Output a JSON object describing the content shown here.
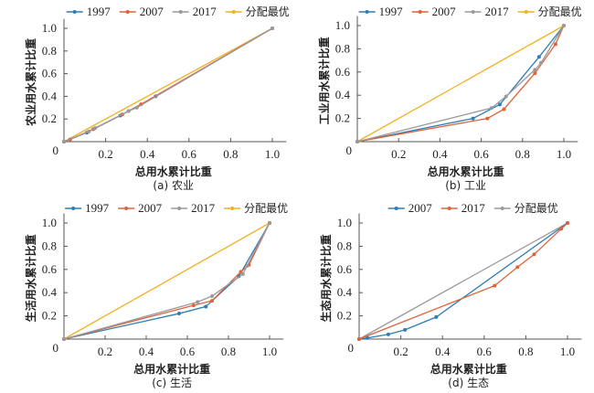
{
  "colors": {
    "blue": "#2f7db5",
    "red": "#e0623b",
    "gray": "#9a9a9a",
    "gold": "#f2b01e",
    "axis": "#555555"
  },
  "chart_data": [
    {
      "id": "a",
      "type": "line",
      "caption": "(a) 农业",
      "xlabel": "总用水累计比重",
      "ylabel": "农业用水累计比重",
      "xlim": [
        0,
        1.05
      ],
      "ylim": [
        0,
        1.05
      ],
      "xticks": [
        "0.2",
        "0.4",
        "0.6",
        "0.8",
        "1.0"
      ],
      "yticks": [
        "0.2",
        "0.4",
        "0.6",
        "0.8",
        "1.0"
      ],
      "origin_label": "0",
      "legend_position": "top",
      "series": [
        {
          "name": "1997",
          "color": "#2f7db5",
          "x": [
            0,
            0.11,
            0.27,
            0.31,
            0.44,
            1.0
          ],
          "y": [
            0,
            0.08,
            0.23,
            0.27,
            0.4,
            1.0
          ]
        },
        {
          "name": "2007",
          "color": "#e0623b",
          "x": [
            0,
            0.03,
            0.14,
            0.28,
            0.37,
            1.0
          ],
          "y": [
            0,
            0.02,
            0.11,
            0.24,
            0.33,
            1.0
          ]
        },
        {
          "name": "2017",
          "color": "#9a9a9a",
          "x": [
            0,
            0.12,
            0.15,
            0.31,
            0.35,
            1.0
          ],
          "y": [
            0,
            0.09,
            0.12,
            0.27,
            0.3,
            1.0
          ]
        },
        {
          "name": "分配最优",
          "color": "#f2b01e",
          "x": [
            0,
            1.0
          ],
          "y": [
            0,
            1.0
          ]
        }
      ]
    },
    {
      "id": "b",
      "type": "line",
      "caption": "(b) 工业",
      "xlabel": "总用水累计比重",
      "ylabel": "工业用水累计比重",
      "xlim": [
        0,
        1.05
      ],
      "ylim": [
        0,
        1.05
      ],
      "xticks": [
        "0.2",
        "0.4",
        "0.6",
        "0.8",
        "1.0"
      ],
      "yticks": [
        "0.2",
        "0.4",
        "0.6",
        "0.8",
        "1.0"
      ],
      "origin_label": "0",
      "legend_position": "top",
      "series": [
        {
          "name": "1997",
          "color": "#2f7db5",
          "x": [
            0,
            0.56,
            0.69,
            0.88,
            1.0
          ],
          "y": [
            0,
            0.2,
            0.32,
            0.73,
            1.0
          ]
        },
        {
          "name": "2007",
          "color": "#e0623b",
          "x": [
            0,
            0.63,
            0.71,
            0.86,
            0.96,
            1.0
          ],
          "y": [
            0,
            0.2,
            0.28,
            0.59,
            0.84,
            1.0
          ]
        },
        {
          "name": "2017",
          "color": "#9a9a9a",
          "x": [
            0,
            0.65,
            0.72,
            0.86,
            0.89,
            1.0
          ],
          "y": [
            0,
            0.29,
            0.39,
            0.62,
            0.68,
            1.0
          ]
        },
        {
          "name": "分配最优",
          "color": "#f2b01e",
          "x": [
            0,
            1.0
          ],
          "y": [
            0,
            1.0
          ]
        }
      ]
    },
    {
      "id": "c",
      "type": "line",
      "caption": "(c) 生活",
      "xlabel": "总用水累计比重",
      "ylabel": "生活用水累计比重",
      "xlim": [
        0,
        1.05
      ],
      "ylim": [
        0,
        1.05
      ],
      "xticks": [
        "0.2",
        "0.4",
        "0.6",
        "0.8",
        "1.0"
      ],
      "yticks": [
        "0.2",
        "0.4",
        "0.6",
        "0.8",
        "1.0"
      ],
      "origin_label": "0",
      "legend_position": "top",
      "series": [
        {
          "name": "1997",
          "color": "#2f7db5",
          "x": [
            0,
            0.56,
            0.69,
            0.85,
            1.0
          ],
          "y": [
            0,
            0.22,
            0.28,
            0.54,
            1.0
          ]
        },
        {
          "name": "2007",
          "color": "#e0623b",
          "x": [
            0,
            0.63,
            0.72,
            0.86,
            0.9,
            1.0
          ],
          "y": [
            0,
            0.29,
            0.33,
            0.58,
            0.64,
            1.0
          ]
        },
        {
          "name": "2017",
          "color": "#9a9a9a",
          "x": [
            0,
            0.65,
            0.72,
            0.87,
            0.89,
            1.0
          ],
          "y": [
            0,
            0.32,
            0.37,
            0.56,
            0.63,
            1.0
          ]
        },
        {
          "name": "分配最优",
          "color": "#f2b01e",
          "x": [
            0,
            1.0
          ],
          "y": [
            0,
            1.0
          ]
        }
      ]
    },
    {
      "id": "d",
      "type": "line",
      "caption": "(d) 生态",
      "xlabel": "总用水累计比重",
      "ylabel": "生态用水累计比重",
      "xlim": [
        0,
        1.05
      ],
      "ylim": [
        0,
        1.05
      ],
      "xticks": [
        "0.2",
        "0.4",
        "0.6",
        "0.8",
        "1.0"
      ],
      "yticks": [
        "0.2",
        "0.4",
        "0.6",
        "0.8",
        "1.0"
      ],
      "origin_label": "0",
      "legend_position": "top",
      "series": [
        {
          "name": "2007",
          "color": "#2f7db5",
          "x": [
            0,
            0.04,
            0.14,
            0.22,
            0.37,
            1.0
          ],
          "y": [
            0,
            0.01,
            0.04,
            0.08,
            0.19,
            1.0
          ]
        },
        {
          "name": "2017",
          "color": "#e0623b",
          "x": [
            0,
            0.65,
            0.76,
            0.84,
            0.97,
            1.0
          ],
          "y": [
            0,
            0.46,
            0.62,
            0.73,
            0.95,
            1.0
          ]
        },
        {
          "name": "分配最优",
          "color": "#9a9a9a",
          "x": [
            0,
            1.0
          ],
          "y": [
            0,
            1.0
          ]
        }
      ]
    }
  ]
}
